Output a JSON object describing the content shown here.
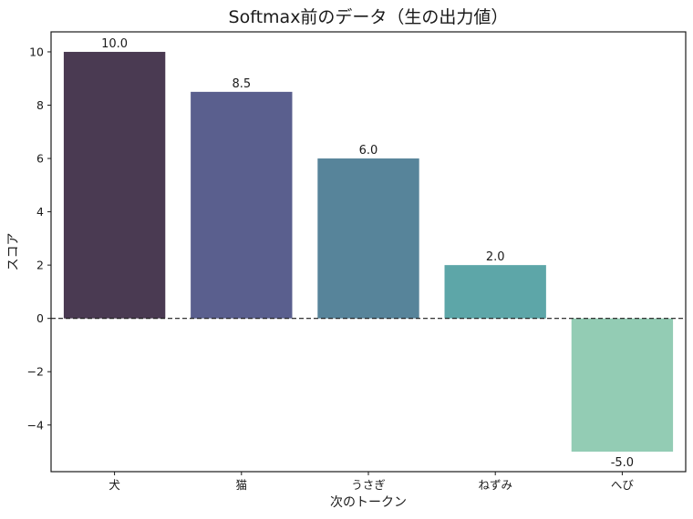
{
  "chart_data": {
    "type": "bar",
    "title": "Softmax前のデータ（生の出力値）",
    "xlabel": "次のトークン",
    "ylabel": "スコア",
    "categories": [
      "犬",
      "猫",
      "うさぎ",
      "ねずみ",
      "へび"
    ],
    "values": [
      10.0,
      8.5,
      6.0,
      2.0,
      -5.0
    ],
    "value_labels": [
      "10.0",
      "8.5",
      "6.0",
      "2.0",
      "-5.0"
    ],
    "colors": [
      "#4a3a52",
      "#5a5f8e",
      "#57849a",
      "#5da6a8",
      "#93ccb4"
    ],
    "ylim": [
      -5.75,
      10.75
    ],
    "yticks": [
      -4,
      -2,
      0,
      2,
      4,
      6,
      8,
      10
    ],
    "ytick_labels": [
      "−4",
      "−2",
      "0",
      "2",
      "4",
      "6",
      "8",
      "10"
    ],
    "reference_line": {
      "y": 0,
      "style": "dashed"
    },
    "grid": false,
    "legend": "none"
  }
}
